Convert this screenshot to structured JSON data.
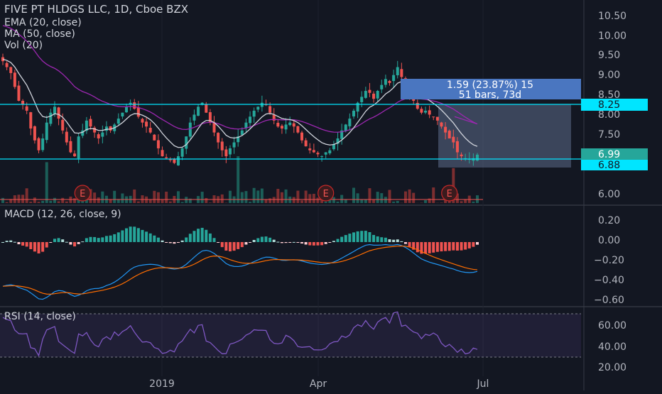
{
  "legend": {
    "symbol": "FIVE PT HLDGS LLC, 1D, Cboe BZX",
    "ema": "EMA (20, close)",
    "ma": "MA (50, close)",
    "vol": "Vol (20)",
    "macd": "MACD (12, 26, close, 9)",
    "rsi": "RSI (14, close)"
  },
  "price_axis": [
    "10.50",
    "10.00",
    "9.50",
    "9.00",
    "8.50",
    "8.00",
    "7.50",
    "6.00"
  ],
  "macd_axis": [
    "0.20",
    "0.00",
    "−0.20",
    "−0.40",
    "−0.60"
  ],
  "rsi_axis": [
    "60.00",
    "40.00",
    "20.00"
  ],
  "time_axis": [
    "2019",
    "Apr",
    "Jul"
  ],
  "tags": {
    "upper": "8.25",
    "last": "6.99",
    "lower": "6.88"
  },
  "measure": {
    "line1": "1.59 (23.87%) 15",
    "line2": "51 bars, 73d"
  },
  "earnings_marker": "E",
  "colors": {
    "bg": "#131722",
    "up": "#26a69a",
    "down": "#ef5350",
    "ema": "#d1d4dc",
    "ma": "#9c27b0",
    "cyan": "#00e5ff",
    "rsi": "#7e57c2",
    "measure": "#2962ff"
  },
  "chart_data": {
    "type": "candlestick",
    "title": "FIVE PT HLDGS LLC, 1D, Cboe BZX",
    "price_ylim": [
      5.8,
      10.7
    ],
    "horizontal_levels": [
      8.25,
      6.88
    ],
    "last_price": 6.99,
    "closes": [
      9.35,
      9.2,
      9.05,
      8.7,
      8.35,
      8.25,
      8.1,
      7.65,
      7.35,
      7.1,
      7.4,
      7.8,
      8.05,
      8.2,
      7.9,
      7.6,
      7.3,
      7.05,
      6.95,
      7.45,
      7.6,
      7.85,
      7.7,
      7.55,
      7.4,
      7.55,
      7.7,
      7.6,
      7.75,
      7.9,
      8.05,
      8.2,
      8.3,
      8.15,
      7.95,
      7.8,
      7.7,
      7.55,
      7.35,
      7.15,
      6.95,
      6.9,
      6.85,
      6.78,
      6.95,
      7.15,
      7.45,
      7.8,
      8.0,
      8.2,
      8.3,
      8.05,
      7.8,
      7.55,
      7.3,
      7.1,
      6.95,
      7.15,
      7.3,
      7.45,
      7.6,
      7.8,
      7.95,
      8.1,
      8.2,
      8.3,
      8.25,
      8.05,
      7.85,
      7.7,
      7.65,
      7.75,
      7.8,
      7.7,
      7.55,
      7.35,
      7.2,
      7.1,
      7.05,
      7.0,
      6.95,
      7.05,
      7.1,
      7.25,
      7.4,
      7.6,
      7.75,
      7.9,
      8.1,
      8.3,
      8.45,
      8.6,
      8.55,
      8.4,
      8.6,
      8.75,
      8.9,
      8.8,
      9.0,
      9.2,
      8.95,
      8.75,
      8.55,
      8.35,
      8.15,
      8.05,
      8.1,
      8.0,
      7.95,
      7.85,
      7.7,
      7.55,
      7.4,
      7.3,
      7.05,
      6.95,
      6.9,
      6.88,
      6.9,
      6.99
    ],
    "volume_spikes": [
      [
        11,
        6.8
      ],
      [
        59,
        6.95
      ],
      [
        113,
        6.65
      ]
    ],
    "earnings_at": [
      20,
      81,
      112
    ],
    "macd_ylim": [
      -0.68,
      0.34
    ],
    "rsi_ylim": [
      14,
      76
    ],
    "rsi_bands": [
      70,
      30
    ]
  }
}
